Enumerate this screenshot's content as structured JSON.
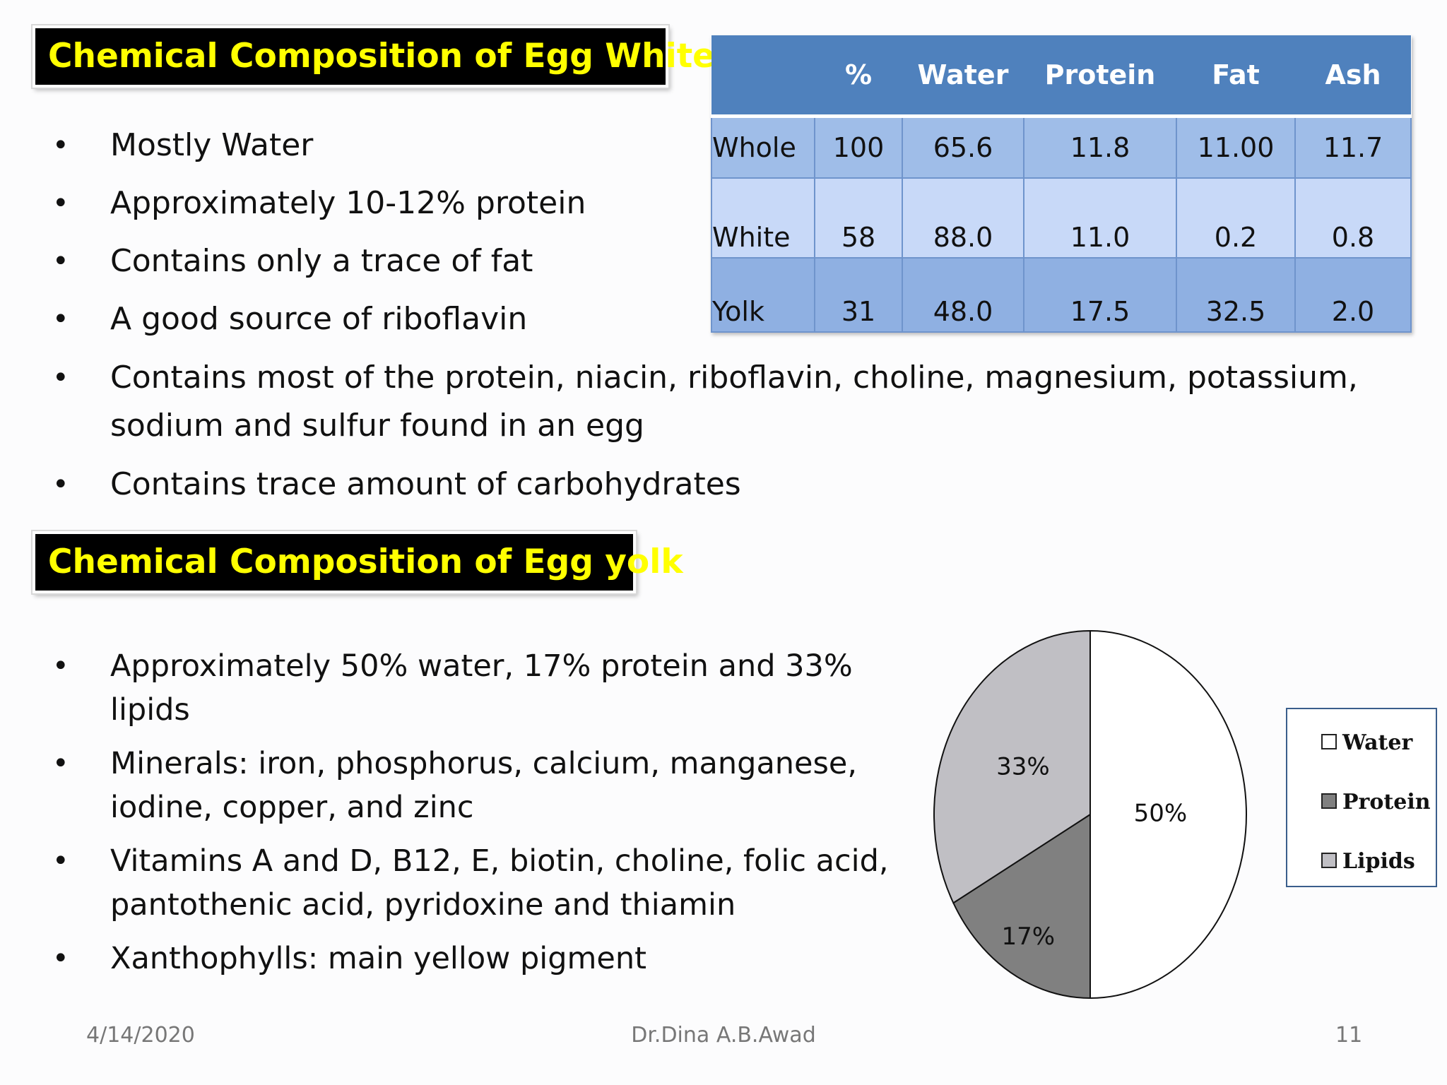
{
  "egg_white": {
    "title": "Chemical Composition of Egg White",
    "bullets": [
      "Mostly Water",
      "Approximately 10-12% protein",
      "Contains only a trace of fat",
      "A good source of riboflavin",
      "Contains most of the protein, niacin, riboflavin, choline, magnesium, potassium, sodium and sulfur found in an egg",
      "Contains  trace amount of carbohydrates"
    ]
  },
  "table": {
    "headers": [
      "",
      "%",
      "Water",
      "Protein",
      "Fat",
      "Ash"
    ],
    "rows": [
      [
        "Whole",
        "100",
        "65.6",
        "11.8",
        "11.00",
        "11.7"
      ],
      [
        "White",
        "58",
        "88.0",
        "11.0",
        "0.2",
        "0.8"
      ],
      [
        "Yolk",
        "31",
        "48.0",
        "17.5",
        "32.5",
        "2.0"
      ]
    ],
    "header_color": "#4f81bd"
  },
  "egg_yolk": {
    "title": "Chemical Composition of Egg yolk",
    "bullets": [
      "Approximately 50% water, 17% protein and 33% lipids",
      "Minerals: iron, phosphorus, calcium, manganese, iodine, copper, and zinc",
      "Vitamins A and D, B12, E, biotin, choline, folic acid, pantothenic acid, pyridoxine and thiamin",
      "Xanthophylls: main yellow pigment"
    ]
  },
  "chart_data": {
    "type": "pie",
    "categories": [
      "Water",
      "Protein",
      "Lipids"
    ],
    "values": [
      50,
      17,
      33
    ],
    "labels": [
      "50%",
      "17%",
      "33%"
    ],
    "colors": [
      "#ffffff",
      "#808080",
      "#c0bfc4"
    ],
    "title": "",
    "legend": "right"
  },
  "footer": {
    "date": "4/14/2020",
    "author": "Dr.Dina A.B.Awad",
    "page": "11"
  }
}
